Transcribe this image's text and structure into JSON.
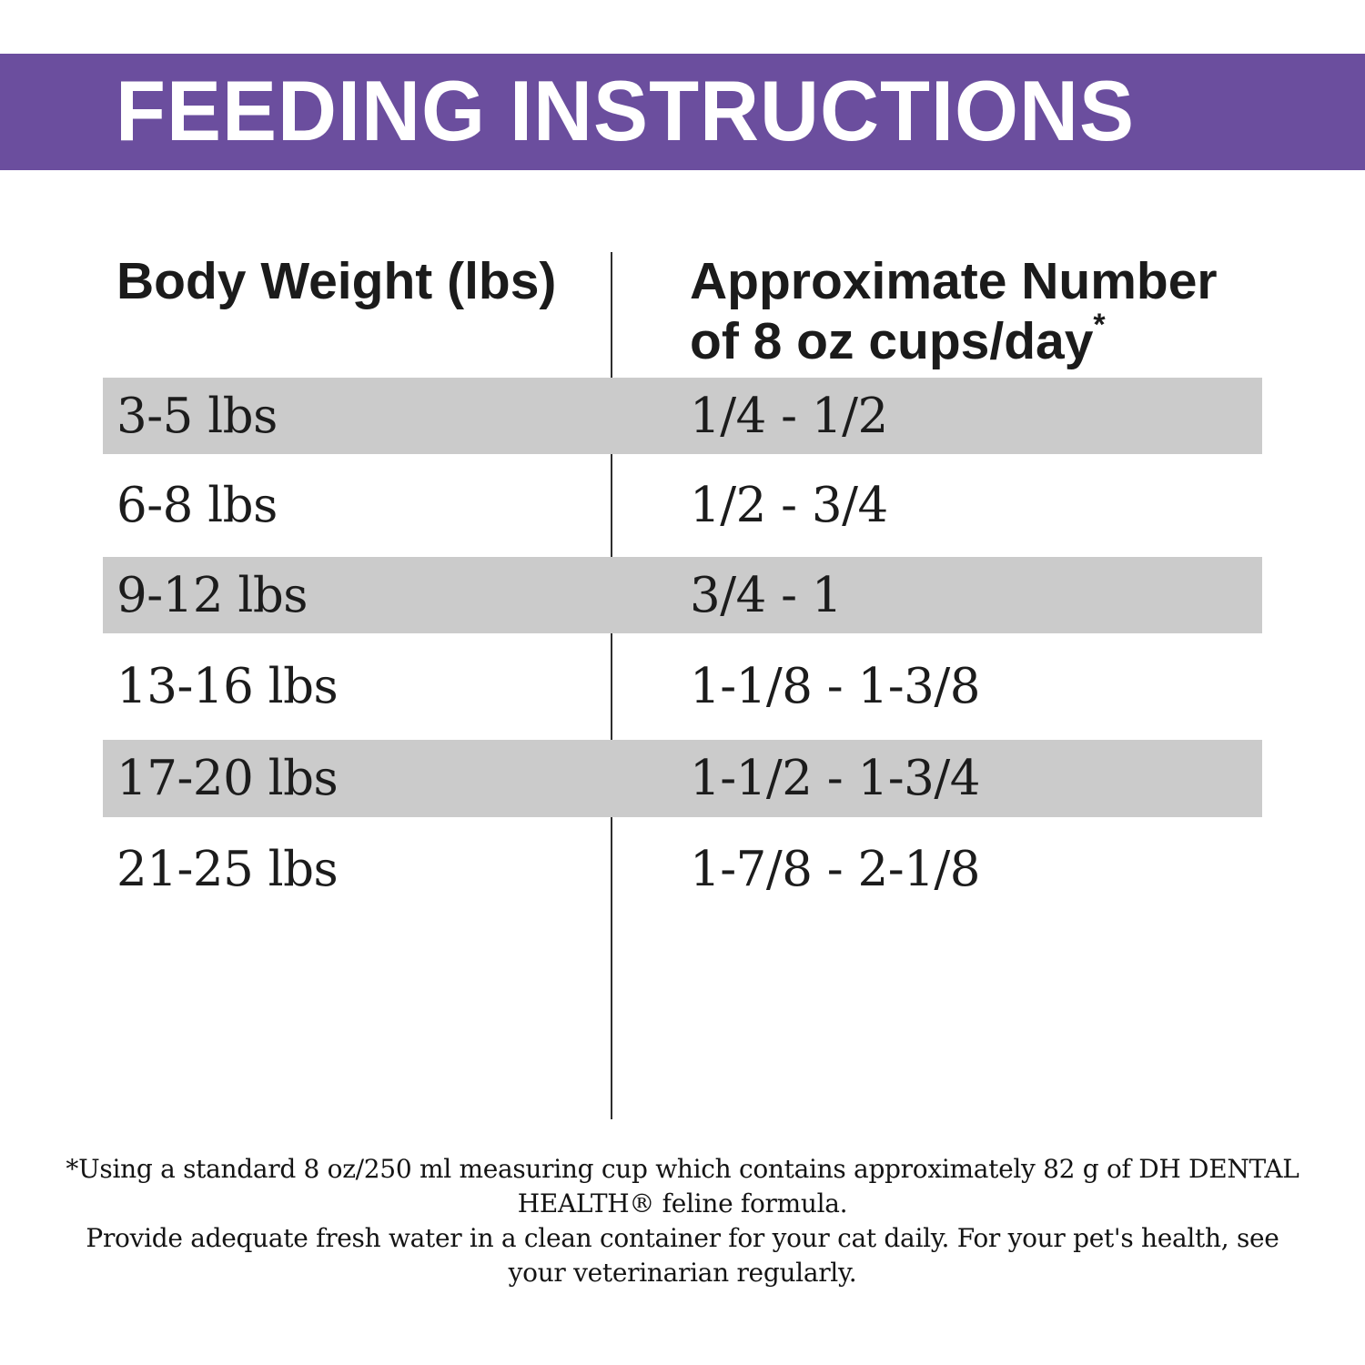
{
  "banner": {
    "title": "FEEDING INSTRUCTIONS",
    "background_color": "#6B4E9E",
    "text_color": "#FFFFFF"
  },
  "table": {
    "stripe_color": "#CBCBCB",
    "columns": {
      "weight": {
        "label": "Body Weight (lbs)"
      },
      "cups": {
        "label_line1": "Approximate Number",
        "label_line2": "of 8 oz cups/day",
        "footnote_marker": "*"
      }
    },
    "rows": [
      {
        "weight": "3-5 lbs",
        "cups": "1/4 - 1/2"
      },
      {
        "weight": "6-8 lbs",
        "cups": "1/2 - 3/4"
      },
      {
        "weight": "9-12 lbs",
        "cups": "3/4 - 1"
      },
      {
        "weight": "13-16 lbs",
        "cups": "1-1/8 - 1-3/8"
      },
      {
        "weight": "17-20 lbs",
        "cups": "1-1/2 - 1-3/4"
      },
      {
        "weight": "21-25 lbs",
        "cups": "1-7/8 - 2-1/8"
      }
    ]
  },
  "footnote": {
    "line1": "*Using a standard 8 oz/250 ml measuring cup which contains approximately 82 g of DH DENTAL HEALTH® feline formula.",
    "line2": "Provide adequate fresh water in a clean container for your cat daily. For your pet's health, see your veterinarian regularly."
  }
}
